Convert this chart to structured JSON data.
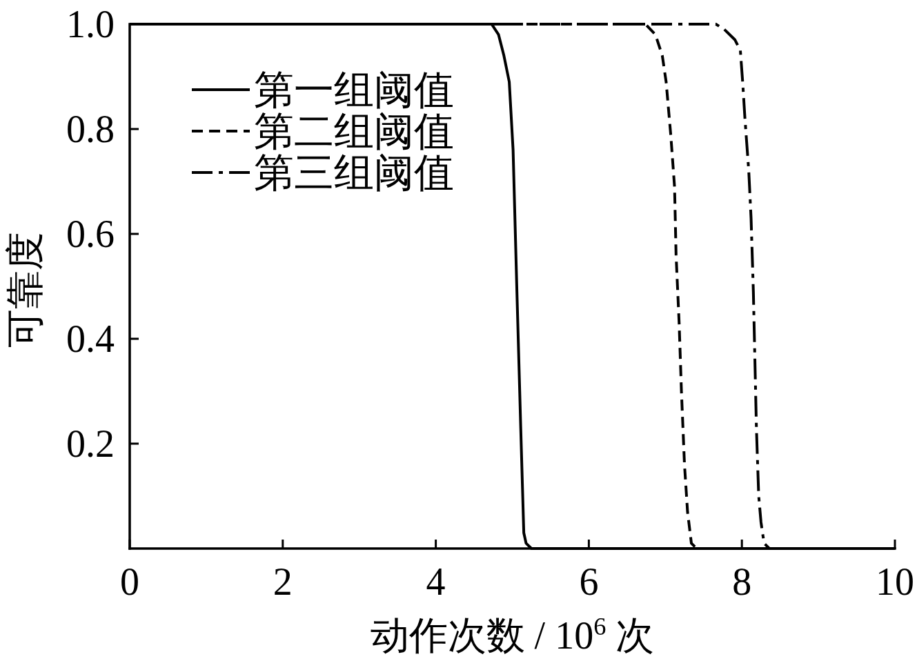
{
  "chart_data": {
    "type": "line",
    "xlabel": "动作次数 / 10$^{6}$ 次",
    "ylabel": "可靠度",
    "xlim": [
      0,
      10
    ],
    "ylim": [
      0,
      1
    ],
    "xticks": [
      0,
      2,
      4,
      6,
      8,
      10
    ],
    "yticks": [
      0.2,
      0.4,
      0.6,
      0.8,
      {
        "value": 1,
        "label": "1.0"
      }
    ],
    "legend": "top left",
    "series": [
      {
        "name": "第一组阈值",
        "color": "#000000",
        "line_style": "solid",
        "x": [
          0,
          4.73,
          4.82,
          4.89,
          4.96,
          5.01,
          5.06,
          5.11,
          5.15,
          5.18,
          5.25,
          10
        ],
        "values": [
          1,
          1,
          0.98,
          0.94,
          0.89,
          0.76,
          0.49,
          0.23,
          0.03,
          0.01,
          0,
          0
        ]
      },
      {
        "name": "第二组阈值",
        "color": "#000000",
        "line_style": "dashed",
        "x": [
          0,
          6.74,
          6.87,
          6.96,
          7.01,
          7.07,
          7.12,
          7.14,
          7.18,
          7.21,
          7.25,
          7.29,
          7.34,
          7.41,
          10
        ],
        "values": [
          1,
          1,
          0.98,
          0.94,
          0.89,
          0.79,
          0.69,
          0.56,
          0.43,
          0.3,
          0.16,
          0.07,
          0.01,
          0,
          0
        ]
      },
      {
        "name": "第三组阈值",
        "color": "#000000",
        "line_style": "dashdot",
        "x": [
          0,
          7.66,
          7.77,
          7.91,
          7.98,
          8.01,
          8.04,
          8.09,
          8.12,
          8.15,
          8.17,
          8.19,
          8.22,
          8.25,
          8.29,
          8.36,
          10
        ],
        "values": [
          1,
          1,
          0.99,
          0.97,
          0.95,
          0.89,
          0.82,
          0.72,
          0.63,
          0.49,
          0.36,
          0.23,
          0.1,
          0.05,
          0.01,
          0,
          0
        ]
      }
    ]
  }
}
